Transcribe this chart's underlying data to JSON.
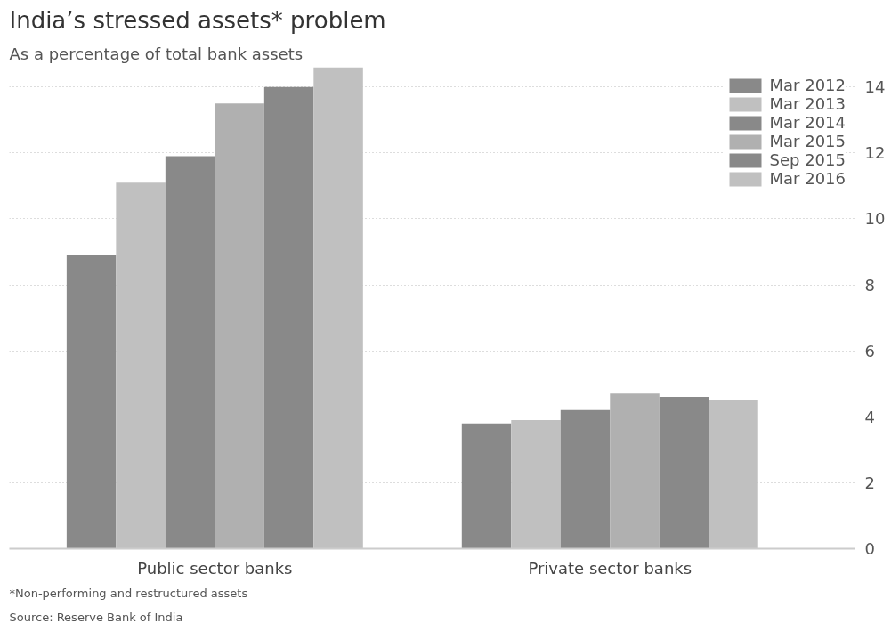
{
  "chart_data": {
    "type": "bar",
    "title": "India’s stressed assets* problem",
    "subtitle": "As a percentage of total bank assets",
    "categories": [
      "Public sector banks",
      "Private sector banks"
    ],
    "series": [
      {
        "name": "Mar 2012",
        "color": "#898989",
        "values": [
          8.9,
          3.8
        ]
      },
      {
        "name": "Mar 2013",
        "color": "#c0c0c0",
        "values": [
          11.1,
          3.9
        ]
      },
      {
        "name": "Mar 2014",
        "color": "#898989",
        "values": [
          11.9,
          4.2
        ]
      },
      {
        "name": "Mar 2015",
        "color": "#b0b0b0",
        "values": [
          13.5,
          4.7
        ]
      },
      {
        "name": "Sep 2015",
        "color": "#898989",
        "values": [
          14.0,
          4.6
        ]
      },
      {
        "name": "Mar 2016",
        "color": "#c0c0c0",
        "values": [
          14.6,
          4.5
        ]
      }
    ],
    "ylim": [
      0,
      14.6
    ],
    "yticks": [
      0,
      2,
      4,
      6,
      8,
      10,
      12,
      14
    ],
    "grid": "y",
    "legend": "top right",
    "annotations": [
      "*Non-performing and restructured assets",
      "Source: Reserve Bank of India"
    ]
  }
}
